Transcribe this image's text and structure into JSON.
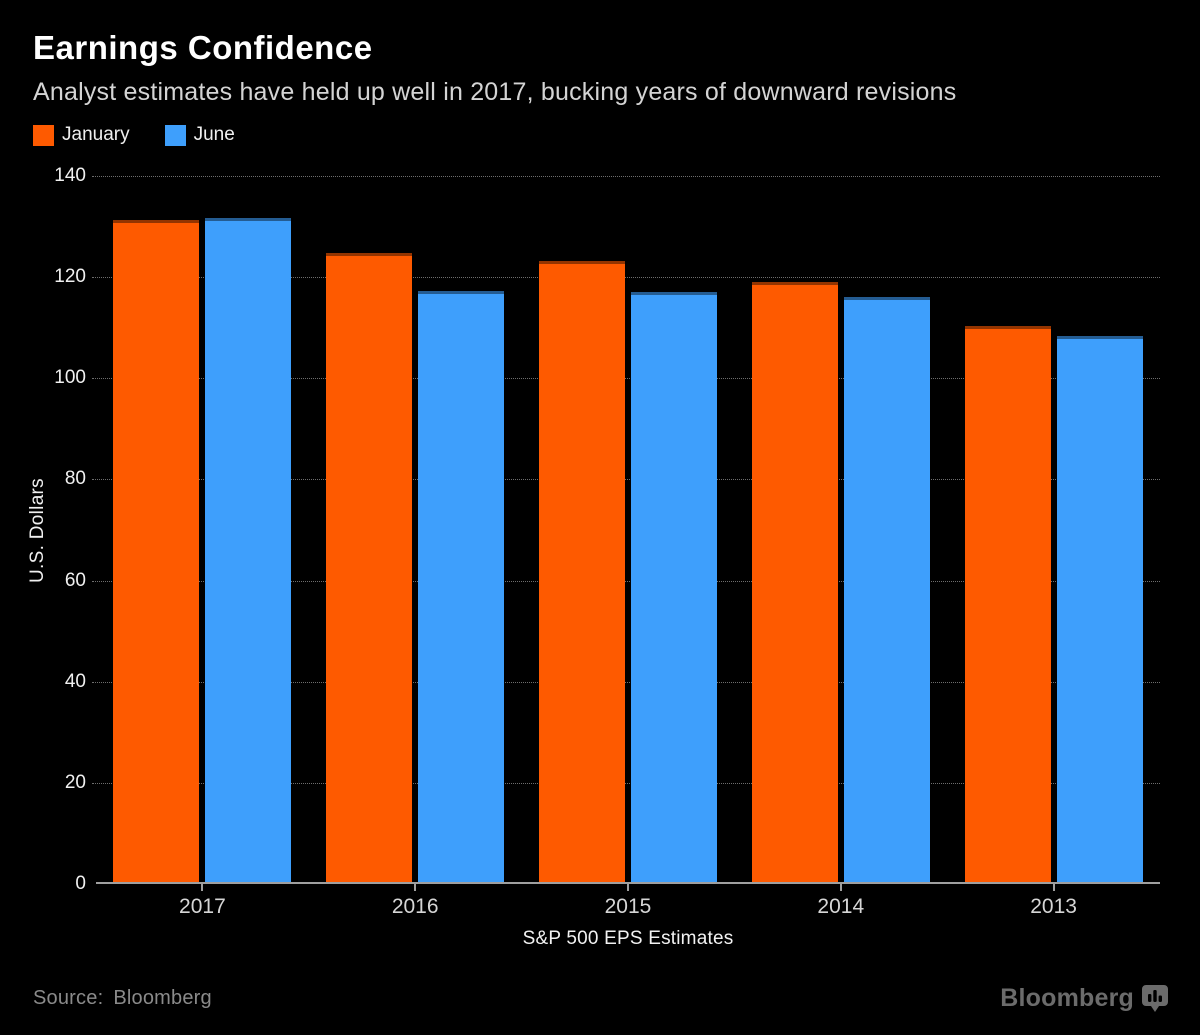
{
  "header": {
    "title": "Earnings Confidence",
    "subtitle": "Analyst estimates have held up well in 2017, bucking years of downward revisions"
  },
  "chart_data": {
    "type": "bar",
    "title": "Earnings Confidence",
    "subtitle": "Analyst estimates have held up well in 2017, bucking years of downward revisions",
    "categories": [
      "2017",
      "2016",
      "2015",
      "2014",
      "2013"
    ],
    "series": [
      {
        "name": "January",
        "color": "#fe5a00",
        "values": [
          131.2,
          124.8,
          123.2,
          118.9,
          110.2
        ]
      },
      {
        "name": "June",
        "color": "#3e9ffc",
        "values": [
          131.6,
          117.1,
          117.0,
          116.1,
          108.2
        ]
      }
    ],
    "xlabel": "S&P 500 EPS Estimates",
    "ylabel": "U.S. Dollars",
    "ylim": [
      0,
      140
    ],
    "yticks": [
      0,
      20,
      40,
      60,
      80,
      100,
      120,
      140
    ],
    "grid": "horizontal-dotted",
    "legend_position": "top-left",
    "background": "#000000"
  },
  "footer": {
    "source_label": "Source:",
    "source_value": "Bloomberg",
    "logo_text": "Bloomberg",
    "logo_icon": "bloomberg-terminal-icon"
  },
  "colors": {
    "background": "#000000",
    "title": "#ffffff",
    "subtitle": "#d4d4d4",
    "january": "#fe5a00",
    "june": "#3e9ffc",
    "axis": "#9f9f9f",
    "gridline": "#6e6e6e",
    "tick_label": "#f0f0f0",
    "source_text": "#8a8a8a",
    "logo": "#6b6b6b"
  }
}
